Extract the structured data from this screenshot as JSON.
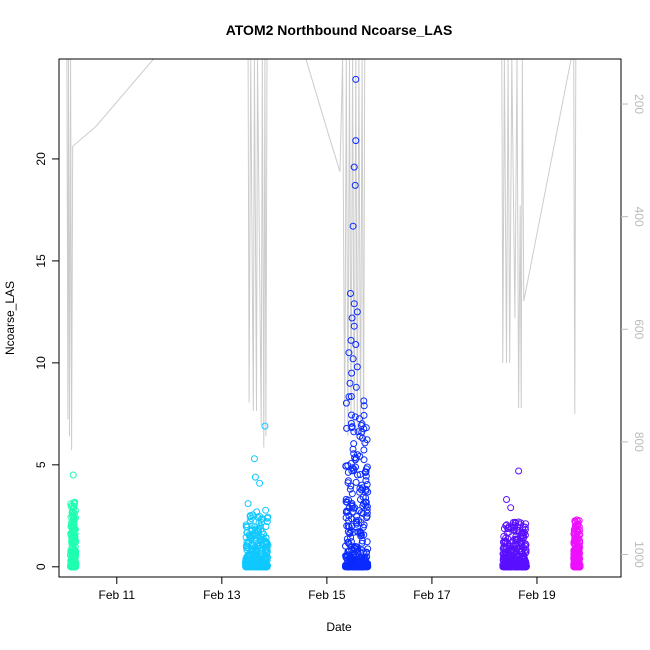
{
  "chart_data": {
    "type": "scatter",
    "title": "ATOM2 Northbound Ncoarse_LAS",
    "xlabel": "Date",
    "ylabel": "Ncoarse_LAS",
    "x_ticks": [
      {
        "day": 11,
        "label": "Feb 11"
      },
      {
        "day": 13,
        "label": "Feb 13"
      },
      {
        "day": 15,
        "label": "Feb 15"
      },
      {
        "day": 17,
        "label": "Feb 17"
      },
      {
        "day": 19,
        "label": "Feb 19"
      }
    ],
    "xlim_days": [
      9.9,
      20.6
    ],
    "ylim": [
      -0.5,
      24.9
    ],
    "y_ticks": [
      0,
      5,
      10,
      15,
      20
    ],
    "secondary_axis": {
      "description": "pressure / altitude trace, reversed",
      "lim": [
        120,
        1040
      ],
      "ticks": [
        200,
        400,
        600,
        800,
        1000
      ],
      "color": "#bbbbbb"
    },
    "grid": false,
    "legend": "none",
    "point_style": "open-circle",
    "clusters": [
      {
        "day_start": 10.12,
        "day_end": 10.22,
        "color": "#1fffb0",
        "max": 3.2,
        "outliers": [
          [
            10.17,
            4.5
          ]
        ]
      },
      {
        "day_start": 13.45,
        "day_end": 13.88,
        "color": "#0fc8ff",
        "max": 2.8,
        "outliers": [
          [
            13.62,
            5.3
          ],
          [
            13.64,
            4.4
          ],
          [
            13.72,
            4.1
          ],
          [
            13.82,
            6.9
          ],
          [
            13.5,
            3.1
          ]
        ]
      },
      {
        "day_start": 15.35,
        "day_end": 15.78,
        "color": "#0a2aff",
        "max": 8.5,
        "outliers": [
          [
            15.55,
            23.9
          ],
          [
            15.55,
            20.9
          ],
          [
            15.52,
            19.6
          ],
          [
            15.54,
            18.7
          ],
          [
            15.5,
            16.7
          ],
          [
            15.45,
            13.4
          ],
          [
            15.52,
            12.9
          ],
          [
            15.58,
            12.5
          ],
          [
            15.48,
            12.2
          ],
          [
            15.52,
            11.8
          ],
          [
            15.46,
            11.1
          ],
          [
            15.55,
            10.9
          ],
          [
            15.42,
            10.5
          ],
          [
            15.5,
            10.2
          ],
          [
            15.58,
            9.8
          ],
          [
            15.47,
            9.5
          ],
          [
            15.44,
            9.0
          ],
          [
            15.56,
            8.8
          ]
        ]
      },
      {
        "day_start": 18.35,
        "day_end": 18.8,
        "color": "#5a10ff",
        "max": 2.2,
        "outliers": [
          [
            18.42,
            3.3
          ],
          [
            18.65,
            4.7
          ],
          [
            18.5,
            2.9
          ]
        ]
      },
      {
        "day_start": 19.7,
        "day_end": 19.82,
        "color": "#ee10ff",
        "max": 2.3,
        "outliers": [
          [
            19.76,
            2.3
          ]
        ]
      }
    ],
    "pressure_trace": {
      "color": "#cccccc",
      "points": [
        [
          10.05,
          120
        ],
        [
          10.07,
          760
        ],
        [
          10.08,
          120
        ],
        [
          10.1,
          790
        ],
        [
          10.12,
          120
        ],
        [
          10.14,
          815
        ],
        [
          10.16,
          275
        ],
        [
          10.6,
          240
        ],
        [
          11.7,
          120
        ],
        [
          13.5,
          120
        ],
        [
          13.52,
          730
        ],
        [
          13.55,
          120
        ],
        [
          13.6,
          745
        ],
        [
          13.62,
          120
        ],
        [
          13.66,
          745
        ],
        [
          13.68,
          120
        ],
        [
          13.75,
          770
        ],
        [
          13.77,
          120
        ],
        [
          13.8,
          810
        ],
        [
          13.82,
          120
        ],
        [
          13.84,
          790
        ],
        [
          13.86,
          120
        ],
        [
          14.6,
          120
        ],
        [
          15.05,
          260
        ],
        [
          15.25,
          320
        ],
        [
          15.3,
          120
        ],
        [
          15.34,
          780
        ],
        [
          15.37,
          120
        ],
        [
          15.4,
          790
        ],
        [
          15.43,
          120
        ],
        [
          15.46,
          770
        ],
        [
          15.49,
          120
        ],
        [
          15.52,
          780
        ],
        [
          15.55,
          120
        ],
        [
          15.58,
          790
        ],
        [
          15.61,
          120
        ],
        [
          15.64,
          800
        ],
        [
          15.67,
          120
        ],
        [
          15.7,
          810
        ],
        [
          15.72,
          120
        ],
        [
          18.33,
          120
        ],
        [
          18.35,
          660
        ],
        [
          18.38,
          120
        ],
        [
          18.42,
          660
        ],
        [
          18.45,
          120
        ],
        [
          18.48,
          660
        ],
        [
          18.52,
          120
        ],
        [
          18.58,
          580
        ],
        [
          18.62,
          120
        ],
        [
          18.65,
          740
        ],
        [
          18.68,
          380
        ],
        [
          18.7,
          740
        ],
        [
          18.72,
          120
        ],
        [
          18.75,
          550
        ],
        [
          19.65,
          120
        ],
        [
          19.7,
          120
        ],
        [
          19.72,
          750
        ],
        [
          19.74,
          120
        ]
      ]
    }
  }
}
